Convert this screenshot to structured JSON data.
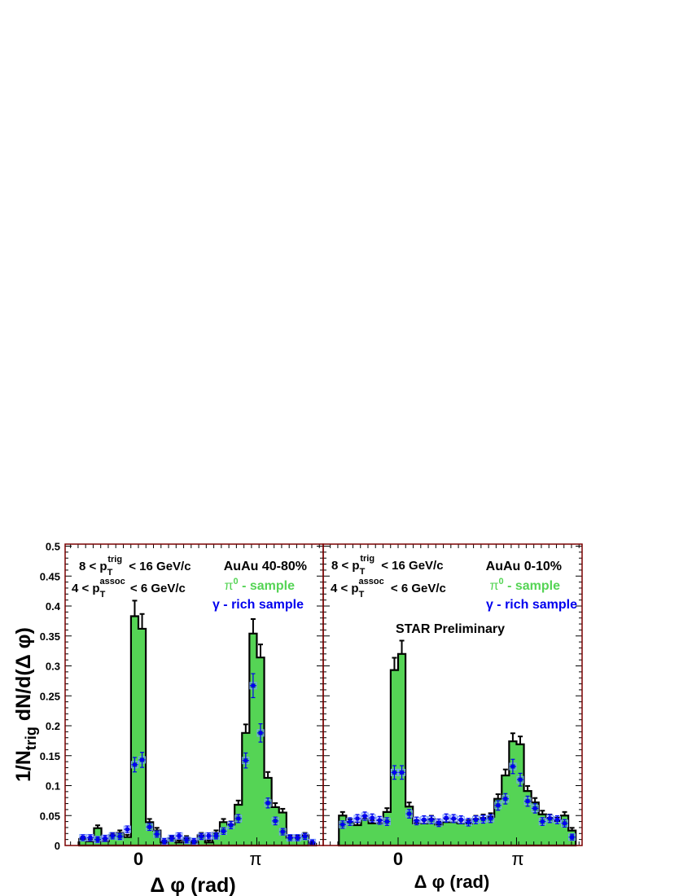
{
  "chart_data": {
    "type": "bar",
    "ylabel": {
      "main": "1/N",
      "sub": "trig",
      "rest": " dN/d(Δ φ)"
    },
    "xlabel": "Δ φ (rad)",
    "ylim": [
      0,
      0.5
    ],
    "yticks": [
      "0",
      "0.05",
      "0.1",
      "0.15",
      "0.2",
      "0.25",
      "0.3",
      "0.35",
      "0.4",
      "0.45",
      "0.5"
    ],
    "xticks": [
      "0",
      "π"
    ],
    "xrange_bins": [
      "-π/2",
      "3π/2"
    ],
    "n_bins": 32,
    "colors": {
      "pi0": "#55d455",
      "gamma": "#0000ee",
      "frame": "#000000"
    },
    "legend": {
      "pi0": "π",
      "pi0_sup": "0",
      "pi0_rest": " - sample",
      "gamma": "γ - rich sample"
    },
    "cuts": {
      "trig": {
        "pre": "8 < p",
        "sub": "T",
        "sup": "trig",
        "post": " < 16 GeV/c"
      },
      "assoc": {
        "pre": "4 < p",
        "sub": "T",
        "sup": "assoc",
        "post": " < 6 GeV/c"
      }
    },
    "panels": [
      {
        "title": "AuAu 40-80%",
        "label": "",
        "series": [
          {
            "name": "π⁰ - sample",
            "values": [
              0.011,
              0.007,
              0.029,
              0.007,
              0.017,
              0.021,
              0.014,
              0.383,
              0.362,
              0.039,
              0.025,
              0.005,
              0.012,
              0.005,
              0.012,
              0.005,
              0.017,
              0.005,
              0.021,
              0.039,
              0.035,
              0.068,
              0.188,
              0.354,
              0.314,
              0.113,
              0.064,
              0.055,
              0.013,
              0.013,
              0.017,
              0.003
            ]
          },
          {
            "name": "γ - rich sample",
            "values": [
              0.013,
              0.013,
              0.01,
              0.012,
              0.016,
              0.015,
              0.027,
              0.135,
              0.143,
              0.031,
              0.019,
              0.007,
              0.012,
              0.016,
              0.009,
              0.007,
              0.015,
              0.016,
              0.016,
              0.024,
              0.034,
              0.045,
              0.142,
              0.267,
              0.188,
              0.071,
              0.041,
              0.023,
              0.013,
              0.013,
              0.015,
              0.005
            ]
          }
        ]
      },
      {
        "title": "AuAu 0-10%",
        "label": "STAR Preliminary",
        "series": [
          {
            "name": "π⁰ - sample",
            "values": [
              0.05,
              0.039,
              0.034,
              0.044,
              0.037,
              0.037,
              0.056,
              0.293,
              0.32,
              0.065,
              0.037,
              0.037,
              0.044,
              0.035,
              0.039,
              0.039,
              0.037,
              0.037,
              0.044,
              0.046,
              0.048,
              0.078,
              0.117,
              0.174,
              0.169,
              0.091,
              0.072,
              0.052,
              0.046,
              0.041,
              0.05,
              0.025
            ]
          },
          {
            "name": "γ - rich sample",
            "values": [
              0.035,
              0.04,
              0.045,
              0.049,
              0.046,
              0.042,
              0.04,
              0.122,
              0.122,
              0.053,
              0.041,
              0.043,
              0.043,
              0.038,
              0.046,
              0.045,
              0.043,
              0.039,
              0.043,
              0.044,
              0.045,
              0.067,
              0.078,
              0.132,
              0.11,
              0.074,
              0.062,
              0.04,
              0.045,
              0.043,
              0.037,
              0.014
            ]
          }
        ]
      }
    ]
  }
}
